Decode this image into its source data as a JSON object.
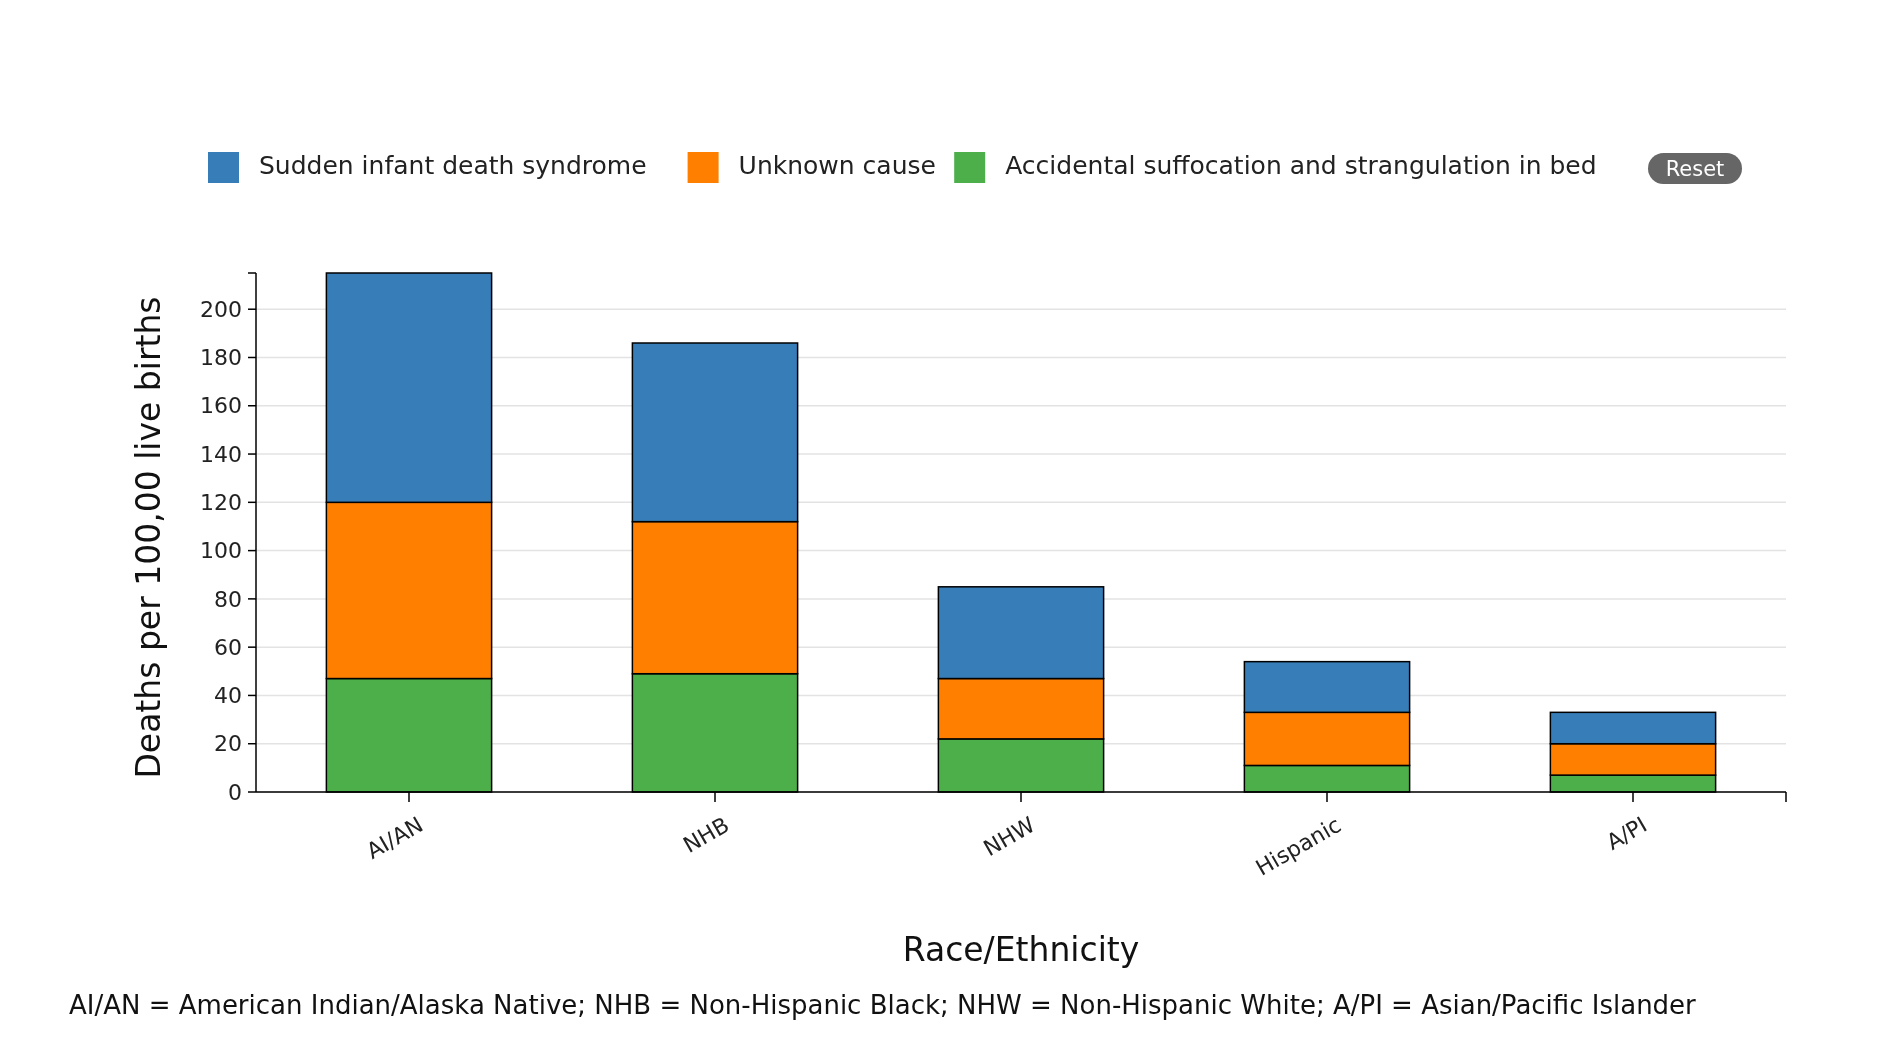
{
  "chart_data": {
    "type": "bar",
    "stacked": true,
    "xlabel": "Race/Ethnicity",
    "ylabel": "Deaths per 100,00 live births",
    "categories": [
      "AI/AN",
      "NHB",
      "NHW",
      "Hispanic",
      "A/PI"
    ],
    "series": [
      {
        "name": "Accidental suffocation and strangulation in bed",
        "color": "#4daf4a",
        "values": [
          47,
          49,
          22,
          11,
          7
        ]
      },
      {
        "name": "Unknown cause",
        "color": "#ff7f00",
        "values": [
          73,
          63,
          25,
          22,
          13
        ]
      },
      {
        "name": "Sudden infant death syndrome",
        "color": "#377eb8",
        "values": [
          95,
          74,
          38,
          21,
          13
        ]
      }
    ],
    "ylim": [
      0,
      215
    ],
    "yticks": [
      0,
      20,
      40,
      60,
      80,
      100,
      120,
      140,
      160,
      180,
      200
    ],
    "grid": "y",
    "legend": "top",
    "annotations": [
      "Reset",
      "AI/AN = American Indian/Alaska Native; NHB = Non-Hispanic Black; NHW = Non-Hispanic White; A/PI = Asian/Pacific Islander"
    ]
  }
}
